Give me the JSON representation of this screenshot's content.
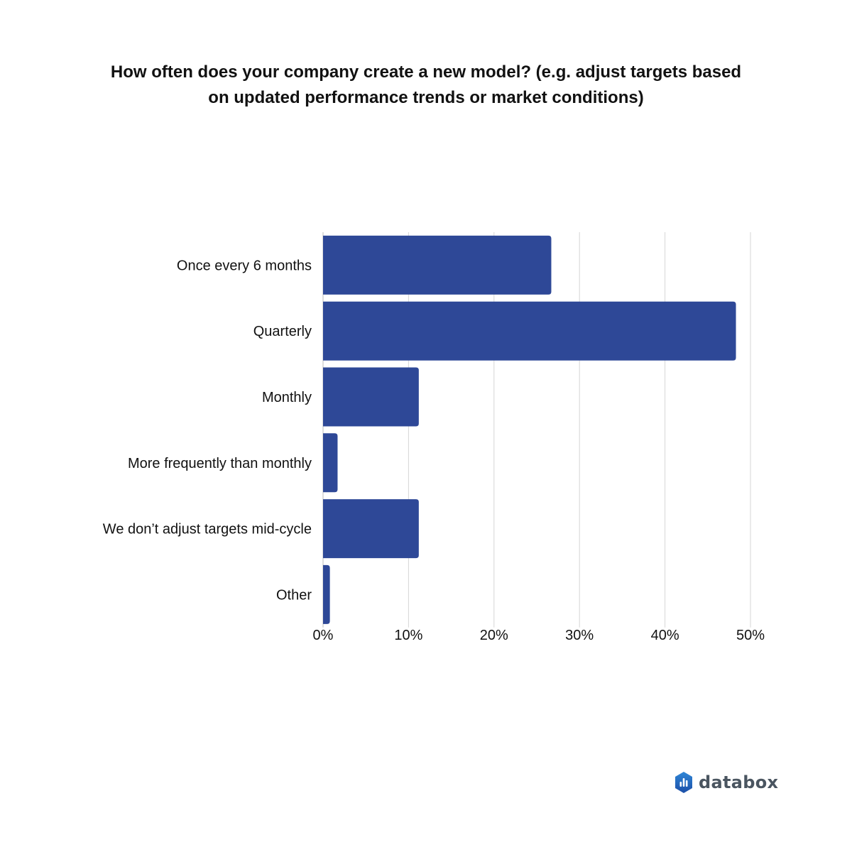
{
  "chart_data": {
    "type": "bar",
    "orientation": "horizontal",
    "title_lines": [
      "How often does your company create a new model? (e.g. adjust targets based",
      "on updated performance trends or market conditions)"
    ],
    "categories": [
      "Once every 6 months",
      "Quarterly",
      "Monthly",
      "More frequently than monthly",
      "We don’t adjust targets mid-cycle",
      "Other"
    ],
    "values": [
      26.7,
      48.3,
      11.2,
      1.7,
      11.2,
      0.8
    ],
    "xlim": [
      0,
      50
    ],
    "xticks": [
      0,
      10,
      20,
      30,
      40,
      50
    ],
    "tick_suffix": "%",
    "grid": "vertical",
    "bar_color": "#2e4897",
    "grid_color": "#d6d6d6"
  },
  "brand": {
    "name": "databox",
    "icon": "databox-logo-icon",
    "icon_color_top": "#2f86d6",
    "icon_color_bottom": "#1c4fa8"
  }
}
